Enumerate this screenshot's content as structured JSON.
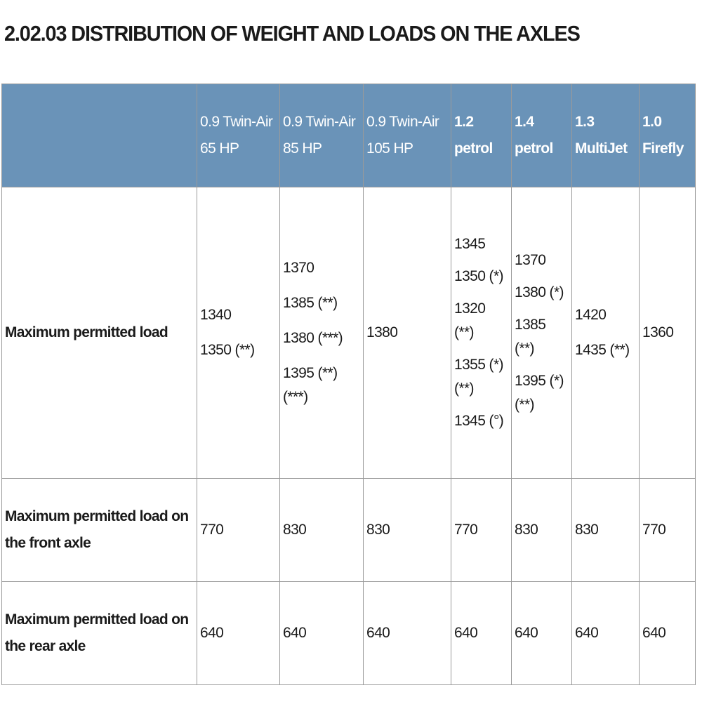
{
  "title": "2.02.03 DISTRIBUTION OF WEIGHT AND LOADS ON THE AXLES",
  "table": {
    "columns": [
      {
        "label": "0.9 Twin-Air 65 HP",
        "bold": false
      },
      {
        "label": "0.9 Twin-Air 85 HP",
        "bold": false
      },
      {
        "label": "0.9 Twin-Air 105 HP",
        "bold": false
      },
      {
        "label": "1.2 petrol",
        "bold": true
      },
      {
        "label": "1.4 petrol",
        "bold": true
      },
      {
        "label": "1.3 MultiJet",
        "bold": true
      },
      {
        "label": "1.0 Firefly",
        "bold": true
      }
    ],
    "rows": [
      {
        "label": "Maximum permitted load",
        "cells": [
          [
            "1340",
            "1350 (**)"
          ],
          [
            "1370",
            "1385 (**)",
            "1380 (***)",
            "1395 (**) (***)"
          ],
          [
            "1380"
          ],
          [
            "1345",
            "1350 (*)",
            "1320 (**)",
            "1355 (*) (**)",
            "1345 (°)"
          ],
          [
            "1370",
            "1380 (*)",
            "1385 (**)",
            "1395 (*) (**)"
          ],
          [
            "1420",
            "1435 (**)"
          ],
          [
            "1360"
          ]
        ]
      },
      {
        "label": "Maximum permitted load on the front axle",
        "cells": [
          [
            "770"
          ],
          [
            "830"
          ],
          [
            "830"
          ],
          [
            "770"
          ],
          [
            "830"
          ],
          [
            "830"
          ],
          [
            "770"
          ]
        ]
      },
      {
        "label": "Maximum permitted load on the rear axle",
        "cells": [
          [
            "640"
          ],
          [
            "640"
          ],
          [
            "640"
          ],
          [
            "640"
          ],
          [
            "640"
          ],
          [
            "640"
          ],
          [
            "640"
          ]
        ]
      }
    ]
  }
}
